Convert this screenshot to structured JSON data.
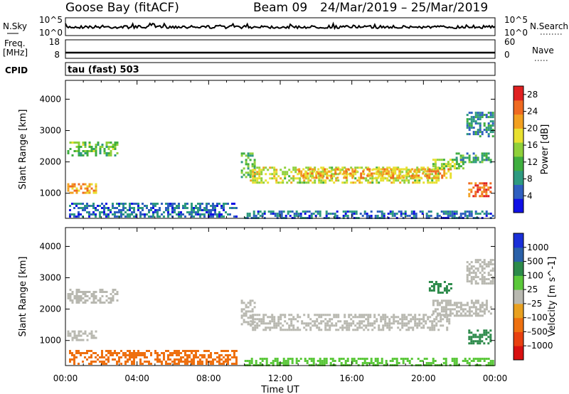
{
  "header": {
    "station": "Goose Bay (fitACF)",
    "beam": "Beam 09",
    "date_range": "24/Mar/2019 – 25/Mar/2019"
  },
  "strips": {
    "nsky_label": "N.Sky",
    "nsky_ticks": [
      "10^5",
      "10^0"
    ],
    "nsearch_label": "N.Search",
    "nsearch_ticks": [
      "10^5",
      "10^0"
    ],
    "freq_label_line1": "Freq.",
    "freq_label_line2": "[MHz]",
    "freq_ticks": [
      "18",
      "8"
    ],
    "nave_label": "Nave",
    "nave_ticks": [
      "60",
      "0"
    ],
    "cpid_label": "CPID",
    "cpid_value": "tau (fast) 503"
  },
  "colors": {
    "power_scale": [
      "#1010e6",
      "#2f5fc0",
      "#2e9a80",
      "#3fae3f",
      "#8fd03a",
      "#e8e030",
      "#f2a020",
      "#ef6a20",
      "#e02020"
    ],
    "velocity_scale": [
      "#1a2fd8",
      "#2a60a8",
      "#2c8a4a",
      "#5bc83a",
      "#b8b8b0",
      "#e8a020",
      "#ee7010",
      "#e84010",
      "#d81010"
    ]
  },
  "chart_data": [
    {
      "type": "heatmap",
      "name": "power",
      "ylabel": "Slant Range [km]",
      "yticks": [
        1000,
        2000,
        3000,
        4000
      ],
      "ylim": [
        200,
        4600
      ],
      "xlim_hours": [
        0,
        24
      ],
      "colorbar": {
        "label": "Power [dB]",
        "ticks": [
          "4",
          "8",
          "12",
          "16",
          "20",
          "24",
          "28"
        ],
        "range": [
          0,
          30
        ]
      },
      "regions": [
        {
          "t0": 0.1,
          "t1": 1.7,
          "r0": 980,
          "r1": 1320,
          "value": 22
        },
        {
          "t0": 0.1,
          "t1": 2.9,
          "r0": 2200,
          "r1": 2650,
          "value": 13
        },
        {
          "t0": 9.8,
          "t1": 10.6,
          "r0": 1500,
          "r1": 2300,
          "value": 12
        },
        {
          "t0": 10.3,
          "t1": 20.8,
          "r0": 1350,
          "r1": 1850,
          "value": 17
        },
        {
          "t0": 13.0,
          "t1": 21.5,
          "r0": 1500,
          "r1": 1800,
          "value": 21
        },
        {
          "t0": 20.5,
          "t1": 22.2,
          "r0": 1800,
          "r1": 2100,
          "value": 15
        },
        {
          "t0": 21.8,
          "t1": 23.8,
          "r0": 2000,
          "r1": 2300,
          "value": 10
        },
        {
          "t0": 22.5,
          "t1": 23.8,
          "r0": 900,
          "r1": 1350,
          "value": 25
        },
        {
          "t0": 22.4,
          "t1": 23.9,
          "r0": 2800,
          "r1": 3600,
          "value": 8
        },
        {
          "t0": 0.2,
          "t1": 9.5,
          "r0": 230,
          "r1": 700,
          "value": 6
        },
        {
          "t0": 10.0,
          "t1": 23.9,
          "r0": 230,
          "r1": 450,
          "value": 6
        }
      ]
    },
    {
      "type": "heatmap",
      "name": "velocity",
      "ylabel": "Slant Range [km]",
      "yticks": [
        1000,
        2000,
        3000,
        4000
      ],
      "ylim": [
        200,
        4600
      ],
      "xlabel": "Time UT",
      "xticks": [
        "00:00",
        "04:00",
        "08:00",
        "12:00",
        "16:00",
        "20:00",
        "00:00"
      ],
      "xlim_hours": [
        0,
        24
      ],
      "colorbar": {
        "label": "Velocity [m s^-1]",
        "ticks": [
          "1000",
          "500",
          "100",
          "25",
          "–25",
          "–100",
          "–500",
          "–1000"
        ]
      },
      "regions": [
        {
          "t0": 0.1,
          "t1": 1.7,
          "r0": 980,
          "r1": 1320,
          "value": 0
        },
        {
          "t0": 0.1,
          "t1": 2.9,
          "r0": 2200,
          "r1": 2650,
          "value": 0
        },
        {
          "t0": 9.8,
          "t1": 10.6,
          "r0": 1500,
          "r1": 2300,
          "value": 0
        },
        {
          "t0": 10.3,
          "t1": 21.5,
          "r0": 1350,
          "r1": 1850,
          "value": 0
        },
        {
          "t0": 20.5,
          "t1": 23.8,
          "r0": 1800,
          "r1": 2300,
          "value": 0
        },
        {
          "t0": 22.5,
          "t1": 23.8,
          "r0": 900,
          "r1": 1350,
          "value": 200
        },
        {
          "t0": 20.3,
          "t1": 21.5,
          "r0": 2500,
          "r1": 2900,
          "value": 200
        },
        {
          "t0": 22.4,
          "t1": 23.9,
          "r0": 2800,
          "r1": 3600,
          "value": 0
        },
        {
          "t0": 0.2,
          "t1": 9.5,
          "r0": 230,
          "r1": 700,
          "value": -200
        },
        {
          "t0": 10.0,
          "t1": 23.9,
          "r0": 230,
          "r1": 450,
          "value": 60
        }
      ]
    }
  ]
}
